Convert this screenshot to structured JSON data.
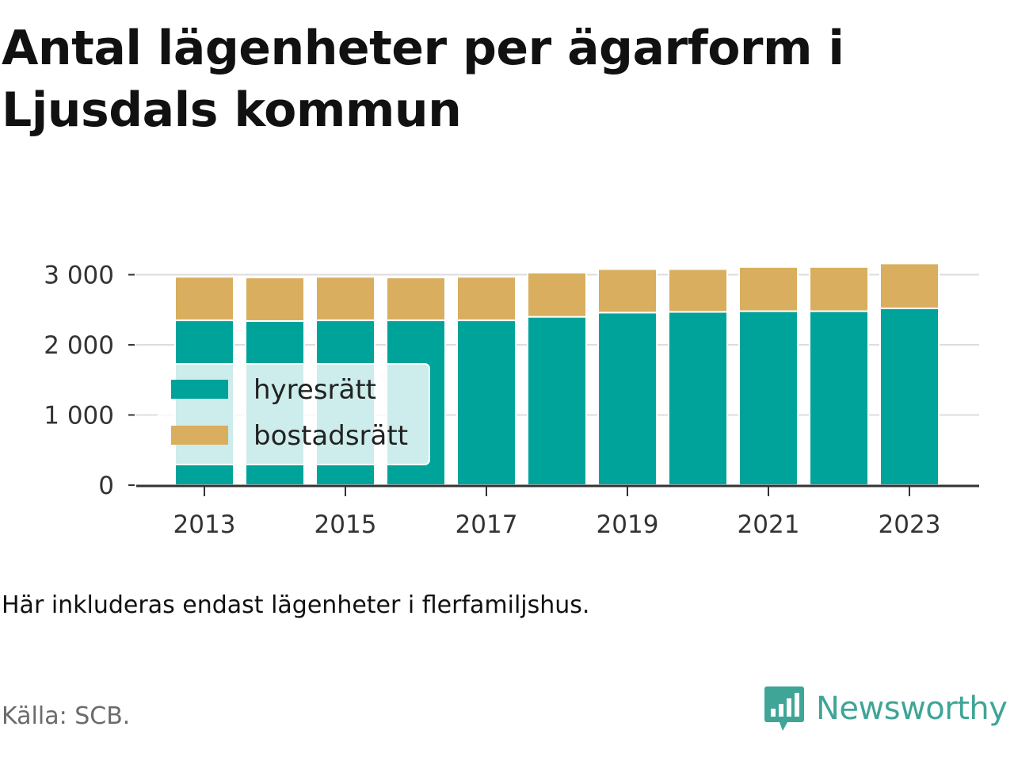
{
  "title": "Antal lägenheter per ägarform i Ljusdals kommun",
  "note": "Här inkluderas endast lägenheter i flerfamiljshus.",
  "source": "Källa: SCB.",
  "brand": {
    "name": "Newsworthy",
    "icon": "newsworthy-logo-icon",
    "color": "#3fa597"
  },
  "chart_data": {
    "type": "bar",
    "stacked": true,
    "x": [
      2013,
      2014,
      2015,
      2016,
      2017,
      2018,
      2019,
      2020,
      2021,
      2022,
      2023
    ],
    "xticks": [
      2013,
      2015,
      2017,
      2019,
      2021,
      2023
    ],
    "yticks": [
      0,
      1000,
      2000,
      3000
    ],
    "ytick_labels": [
      "0",
      "1 000",
      "2 000",
      "3 000"
    ],
    "ylim": [
      0,
      3300
    ],
    "grid": true,
    "legend_position": "left",
    "series": [
      {
        "name": "hyresrätt",
        "color": "#00a39a",
        "values": [
          2350,
          2340,
          2350,
          2350,
          2350,
          2400,
          2460,
          2470,
          2480,
          2480,
          2520
        ]
      },
      {
        "name": "bostadsrätt",
        "color": "#d9ae5f",
        "values": [
          620,
          620,
          620,
          610,
          620,
          630,
          620,
          610,
          630,
          630,
          640
        ]
      }
    ]
  }
}
